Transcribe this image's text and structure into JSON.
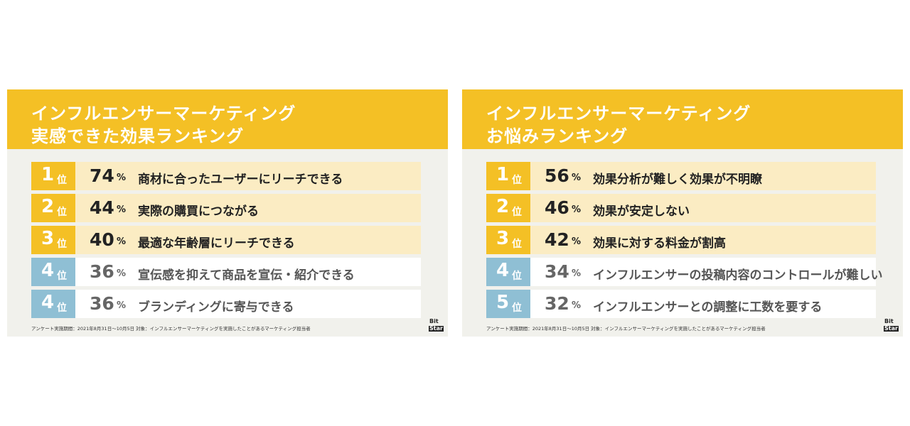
{
  "chart_data": [
    {
      "type": "table",
      "title_lines": [
        "インフルエンサーマーケティング",
        "実感できた効果ランキング"
      ],
      "rank_suffix": "位",
      "percent_suffix": "%",
      "rows": [
        {
          "rank": "1",
          "value": 74,
          "label": "商材に合ったユーザーにリーチできる"
        },
        {
          "rank": "2",
          "value": 44,
          "label": "実際の購買につながる"
        },
        {
          "rank": "3",
          "value": 40,
          "label": "最適な年齢層にリーチできる"
        },
        {
          "rank": "4",
          "value": 36,
          "label": "宣伝感を抑えて商品を宣伝・紹介できる"
        },
        {
          "rank": "4",
          "value": 36,
          "label": "ブランディングに寄与できる"
        }
      ],
      "footnote": "アンケート実施期間：2021年8月31日〜10月5日 対象：インフルエンサーマーケティングを実施したことがあるマーケティング担当者"
    },
    {
      "type": "table",
      "title_lines": [
        "インフルエンサーマーケティング",
        "お悩みランキング"
      ],
      "rank_suffix": "位",
      "percent_suffix": "%",
      "rows": [
        {
          "rank": "1",
          "value": 56,
          "label": "効果分析が難しく効果が不明瞭"
        },
        {
          "rank": "2",
          "value": 46,
          "label": "効果が安定しない"
        },
        {
          "rank": "3",
          "value": 42,
          "label": "効果に対する料金が割高"
        },
        {
          "rank": "4",
          "value": 34,
          "label": "インフルエンサーの投稿内容のコントロールが難しい"
        },
        {
          "rank": "5",
          "value": 32,
          "label": "インフルエンサーとの調整に工数を要する"
        }
      ],
      "footnote": "アンケート実施期間：2021年8月31日〜10月5日 対象：インフルエンサーマーケティングを実施したことがあるマーケティング担当者"
    }
  ],
  "logo": {
    "line1": "Bit",
    "line2": "Star"
  },
  "colors": {
    "header": "#f4c025",
    "top_rank": "#f4c025",
    "top_row": "#fbecc3",
    "low_rank": "#8fbfd4",
    "low_row": "#ffffff",
    "panel": "#f1f1ec"
  }
}
